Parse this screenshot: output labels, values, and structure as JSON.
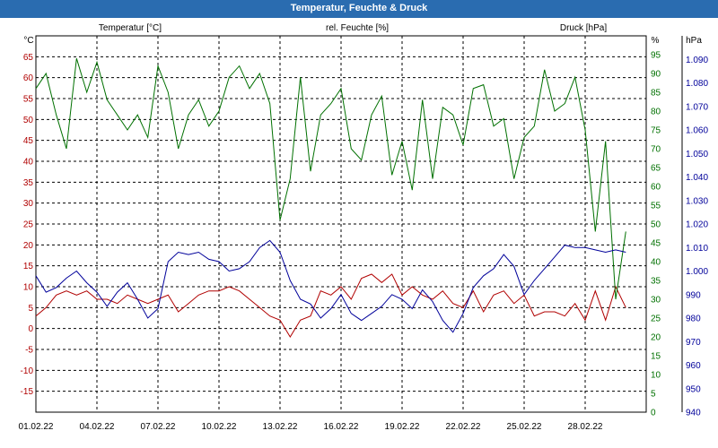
{
  "window": {
    "title": "Temperatur, Feuchte & Druck"
  },
  "colors": {
    "temperature": "#b00000",
    "humidity": "#007000",
    "pressure": "#00009a",
    "grid": "#000000",
    "titlebar": "#2a6cb0"
  },
  "chart_data": {
    "type": "line",
    "title": "Temperatur, Feuchte & Druck",
    "x": {
      "start_day": 1,
      "end_day": 31,
      "ticks": [
        {
          "day": 1,
          "label": "01.02.22"
        },
        {
          "day": 4,
          "label": "04.02.22"
        },
        {
          "day": 7,
          "label": "07.02.22"
        },
        {
          "day": 10,
          "label": "10.02.22"
        },
        {
          "day": 13,
          "label": "13.02.22"
        },
        {
          "day": 16,
          "label": "16.02.22"
        },
        {
          "day": 19,
          "label": "19.02.22"
        },
        {
          "day": 22,
          "label": "22.02.22"
        },
        {
          "day": 25,
          "label": "25.02.22"
        },
        {
          "day": 28,
          "label": "28.02.22"
        }
      ]
    },
    "axes": {
      "temperature": {
        "title": "Temperatur [°C]",
        "unit_label": "°C",
        "ylim": [
          -20,
          70
        ],
        "grid": true,
        "ticks": [
          {
            "v": 65,
            "t": "65"
          },
          {
            "v": 60,
            "t": "60"
          },
          {
            "v": 55,
            "t": "55"
          },
          {
            "v": 50,
            "t": "50"
          },
          {
            "v": 45,
            "t": "45"
          },
          {
            "v": 40,
            "t": "40"
          },
          {
            "v": 35,
            "t": "35"
          },
          {
            "v": 30,
            "t": "30"
          },
          {
            "v": 25,
            "t": "25"
          },
          {
            "v": 20,
            "t": "20"
          },
          {
            "v": 15,
            "t": "15"
          },
          {
            "v": 10,
            "t": "10"
          },
          {
            "v": 5,
            "t": "5"
          },
          {
            "v": 0,
            "t": "0"
          },
          {
            "v": -5,
            "t": "-5"
          },
          {
            "v": -10,
            "t": "-10"
          },
          {
            "v": -15,
            "t": "-15"
          }
        ]
      },
      "humidity": {
        "title": "rel. Feuchte [%]",
        "unit_label": "%",
        "ylim": [
          0,
          100
        ],
        "ticks": [
          {
            "v": 95,
            "t": "95"
          },
          {
            "v": 90,
            "t": "90"
          },
          {
            "v": 85,
            "t": "85"
          },
          {
            "v": 80,
            "t": "80"
          },
          {
            "v": 75,
            "t": "75"
          },
          {
            "v": 70,
            "t": "70"
          },
          {
            "v": 65,
            "t": "65"
          },
          {
            "v": 60,
            "t": "60"
          },
          {
            "v": 55,
            "t": "55"
          },
          {
            "v": 50,
            "t": "50"
          },
          {
            "v": 45,
            "t": "45"
          },
          {
            "v": 40,
            "t": "40"
          },
          {
            "v": 35,
            "t": "35"
          },
          {
            "v": 30,
            "t": "30"
          },
          {
            "v": 25,
            "t": "25"
          },
          {
            "v": 20,
            "t": "20"
          },
          {
            "v": 15,
            "t": "15"
          },
          {
            "v": 10,
            "t": "10"
          },
          {
            "v": 5,
            "t": "5"
          },
          {
            "v": 0,
            "t": "0"
          }
        ]
      },
      "pressure": {
        "title": "Druck [hPa]",
        "unit_label": "hPa",
        "ylim": [
          940,
          1100
        ],
        "ticks": [
          {
            "v": 1090,
            "t": "1.090"
          },
          {
            "v": 1080,
            "t": "1.080"
          },
          {
            "v": 1070,
            "t": "1.070"
          },
          {
            "v": 1060,
            "t": "1.060"
          },
          {
            "v": 1050,
            "t": "1.050"
          },
          {
            "v": 1040,
            "t": "1.040"
          },
          {
            "v": 1030,
            "t": "1.030"
          },
          {
            "v": 1020,
            "t": "1.020"
          },
          {
            "v": 1010,
            "t": "1.010"
          },
          {
            "v": 1000,
            "t": "1.000"
          },
          {
            "v": 990,
            "t": "990"
          },
          {
            "v": 980,
            "t": "980"
          },
          {
            "v": 970,
            "t": "970"
          },
          {
            "v": 960,
            "t": "960"
          },
          {
            "v": 950,
            "t": "950"
          },
          {
            "v": 940,
            "t": "940"
          }
        ]
      }
    },
    "series": [
      {
        "name": "Temperatur [°C]",
        "axis": "temperature",
        "points": [
          [
            1,
            3
          ],
          [
            1.5,
            5
          ],
          [
            2,
            8
          ],
          [
            2.5,
            9
          ],
          [
            3,
            8
          ],
          [
            3.5,
            9
          ],
          [
            4,
            7
          ],
          [
            4.5,
            7
          ],
          [
            5,
            6
          ],
          [
            5.5,
            8
          ],
          [
            6,
            7
          ],
          [
            6.5,
            6
          ],
          [
            7,
            7
          ],
          [
            7.5,
            8
          ],
          [
            8,
            4
          ],
          [
            8.5,
            6
          ],
          [
            9,
            8
          ],
          [
            9.5,
            9
          ],
          [
            10,
            9
          ],
          [
            10.5,
            10
          ],
          [
            11,
            9
          ],
          [
            11.5,
            7
          ],
          [
            12,
            5
          ],
          [
            12.5,
            3
          ],
          [
            13,
            2
          ],
          [
            13.5,
            -2
          ],
          [
            14,
            2
          ],
          [
            14.5,
            3
          ],
          [
            15,
            9
          ],
          [
            15.5,
            8
          ],
          [
            16,
            10
          ],
          [
            16.5,
            7
          ],
          [
            17,
            12
          ],
          [
            17.5,
            13
          ],
          [
            18,
            11
          ],
          [
            18.5,
            13
          ],
          [
            19,
            8
          ],
          [
            19.5,
            10
          ],
          [
            20,
            8
          ],
          [
            20.5,
            7
          ],
          [
            21,
            9
          ],
          [
            21.5,
            6
          ],
          [
            22,
            5
          ],
          [
            22.5,
            9
          ],
          [
            23,
            4
          ],
          [
            23.5,
            8
          ],
          [
            24,
            9
          ],
          [
            24.5,
            6
          ],
          [
            25,
            8
          ],
          [
            25.5,
            3
          ],
          [
            26,
            4
          ],
          [
            26.5,
            4
          ],
          [
            27,
            3
          ],
          [
            27.5,
            6
          ],
          [
            28,
            2
          ],
          [
            28.5,
            9
          ],
          [
            29,
            2
          ],
          [
            29.5,
            10
          ],
          [
            30,
            5
          ]
        ]
      },
      {
        "name": "rel. Feuchte [%]",
        "axis": "humidity",
        "points": [
          [
            1,
            86
          ],
          [
            1.5,
            90
          ],
          [
            2,
            79
          ],
          [
            2.5,
            70
          ],
          [
            3,
            94
          ],
          [
            3.5,
            85
          ],
          [
            4,
            93
          ],
          [
            4.5,
            83
          ],
          [
            5,
            79
          ],
          [
            5.5,
            75
          ],
          [
            6,
            79
          ],
          [
            6.5,
            73
          ],
          [
            7,
            92
          ],
          [
            7.5,
            85
          ],
          [
            8,
            70
          ],
          [
            8.5,
            79
          ],
          [
            9,
            83
          ],
          [
            9.5,
            76
          ],
          [
            10,
            80
          ],
          [
            10.5,
            89
          ],
          [
            11,
            92
          ],
          [
            11.5,
            86
          ],
          [
            12,
            90
          ],
          [
            12.5,
            82
          ],
          [
            13,
            51
          ],
          [
            13.5,
            62
          ],
          [
            14,
            89
          ],
          [
            14.5,
            64
          ],
          [
            15,
            79
          ],
          [
            15.5,
            82
          ],
          [
            16,
            86
          ],
          [
            16.5,
            70
          ],
          [
            17,
            67
          ],
          [
            17.5,
            79
          ],
          [
            18,
            84
          ],
          [
            18.5,
            63
          ],
          [
            19,
            72
          ],
          [
            19.5,
            59
          ],
          [
            20,
            83
          ],
          [
            20.5,
            62
          ],
          [
            21,
            81
          ],
          [
            21.5,
            79
          ],
          [
            22,
            71
          ],
          [
            22.5,
            86
          ],
          [
            23,
            87
          ],
          [
            23.5,
            76
          ],
          [
            24,
            78
          ],
          [
            24.5,
            62
          ],
          [
            25,
            73
          ],
          [
            25.5,
            76
          ],
          [
            26,
            91
          ],
          [
            26.5,
            80
          ],
          [
            27,
            82
          ],
          [
            27.5,
            89
          ],
          [
            28,
            75
          ],
          [
            28.5,
            48
          ],
          [
            29,
            72
          ],
          [
            29.5,
            30
          ],
          [
            30,
            48
          ]
        ]
      },
      {
        "name": "Druck [hPa]",
        "axis": "pressure",
        "points": [
          [
            1,
            998
          ],
          [
            1.5,
            991
          ],
          [
            2,
            993
          ],
          [
            2.5,
            997
          ],
          [
            3,
            1000
          ],
          [
            3.5,
            995
          ],
          [
            4,
            991
          ],
          [
            4.5,
            985
          ],
          [
            5,
            991
          ],
          [
            5.5,
            995
          ],
          [
            6,
            988
          ],
          [
            6.5,
            980
          ],
          [
            7,
            984
          ],
          [
            7.5,
            1004
          ],
          [
            8,
            1008
          ],
          [
            8.5,
            1007
          ],
          [
            9,
            1008
          ],
          [
            9.5,
            1005
          ],
          [
            10,
            1004
          ],
          [
            10.5,
            1000
          ],
          [
            11,
            1001
          ],
          [
            11.5,
            1004
          ],
          [
            12,
            1010
          ],
          [
            12.5,
            1013
          ],
          [
            13,
            1008
          ],
          [
            13.5,
            996
          ],
          [
            14,
            988
          ],
          [
            14.5,
            986
          ],
          [
            15,
            980
          ],
          [
            15.5,
            984
          ],
          [
            16,
            990
          ],
          [
            16.5,
            982
          ],
          [
            17,
            979
          ],
          [
            17.5,
            982
          ],
          [
            18,
            985
          ],
          [
            18.5,
            990
          ],
          [
            19,
            988
          ],
          [
            19.5,
            984
          ],
          [
            20,
            992
          ],
          [
            20.5,
            987
          ],
          [
            21,
            979
          ],
          [
            21.5,
            974
          ],
          [
            22,
            982
          ],
          [
            22.5,
            993
          ],
          [
            23,
            998
          ],
          [
            23.5,
            1001
          ],
          [
            24,
            1007
          ],
          [
            24.5,
            1002
          ],
          [
            25,
            990
          ],
          [
            25.5,
            996
          ],
          [
            26,
            1001
          ],
          [
            26.5,
            1006
          ],
          [
            27,
            1011
          ],
          [
            27.5,
            1010
          ],
          [
            28,
            1010
          ],
          [
            28.5,
            1009
          ],
          [
            29,
            1008
          ],
          [
            29.5,
            1009
          ],
          [
            30,
            1008
          ]
        ]
      }
    ]
  }
}
